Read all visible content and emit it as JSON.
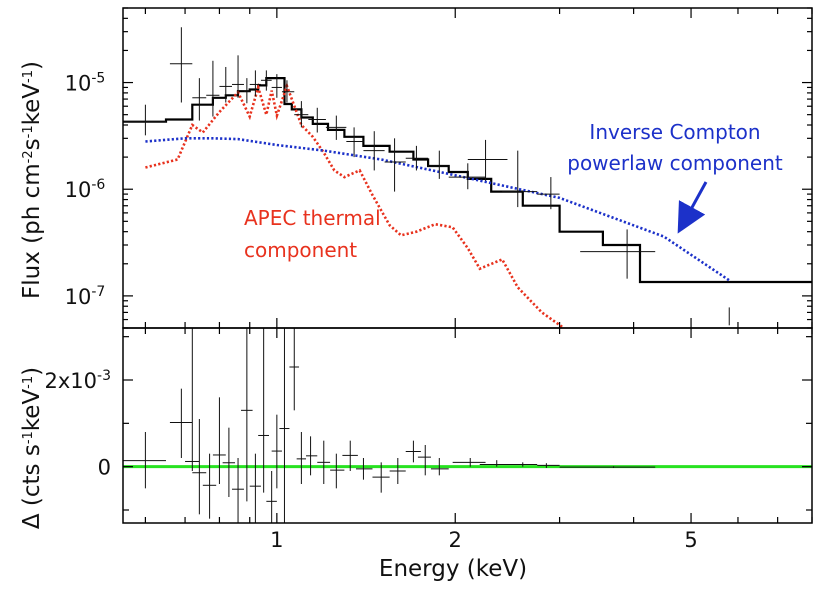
{
  "chart_data": [
    {
      "type": "line",
      "panel": "top",
      "xlabel": "",
      "ylabel": {
        "prefix": "Flux (ph cm",
        "exp1": "-2",
        "mid1": "s",
        "exp2": "-1",
        "mid2": "keV",
        "exp3": "-1",
        "suffix": ")"
      },
      "x_scale": "log",
      "y_scale": "log",
      "xlim": [
        0.55,
        8.0
      ],
      "ylim": [
        5e-08,
        5e-05
      ],
      "x_ticks": [
        1,
        2,
        5
      ],
      "y_ticks": [
        {
          "value": 1e-07,
          "base": "10",
          "exp": "-7"
        },
        {
          "value": 1e-06,
          "base": "10",
          "exp": "-6"
        },
        {
          "value": 1e-05,
          "base": "10",
          "exp": "-5"
        }
      ],
      "grid": false,
      "series": [
        {
          "name": "model",
          "style": "step",
          "color": "#000000",
          "x": [
            0.55,
            0.65,
            0.72,
            0.78,
            0.82,
            0.86,
            0.9,
            0.93,
            0.96,
            1.0,
            1.03,
            1.06,
            1.1,
            1.15,
            1.22,
            1.3,
            1.4,
            1.55,
            1.7,
            1.8,
            1.95,
            2.1,
            2.3,
            2.6,
            3.0,
            3.55,
            4.1,
            8.0
          ],
          "y": [
            4.3e-06,
            4.5e-06,
            6.2e-06,
            7.2e-06,
            7.6e-06,
            8.3e-06,
            8.6e-06,
            9.4e-06,
            1.1e-05,
            1.1e-05,
            6.3e-06,
            5.6e-06,
            4.7e-06,
            4.1e-06,
            3.6e-06,
            3.1e-06,
            2.55e-06,
            2.25e-06,
            1.9e-06,
            1.65e-06,
            1.45e-06,
            1.25e-06,
            9.5e-07,
            7e-07,
            4e-07,
            3e-07,
            1.35e-07,
            1.35e-07
          ]
        },
        {
          "name": "APEC thermal component",
          "style": "dotted",
          "color": "#e8321e",
          "x": [
            0.6,
            0.68,
            0.72,
            0.75,
            0.8,
            0.86,
            0.9,
            0.93,
            0.96,
            0.98,
            1.0,
            1.04,
            1.1,
            1.15,
            1.2,
            1.25,
            1.3,
            1.38,
            1.45,
            1.55,
            1.62,
            1.72,
            1.85,
            1.98,
            2.1,
            2.2,
            2.4,
            2.55,
            2.8,
            3.05
          ],
          "y": [
            1.6e-06,
            1.9e-06,
            4e-06,
            3.4e-06,
            5.3e-06,
            8.1e-06,
            4.8e-06,
            9e-06,
            5e-06,
            8.4e-06,
            4.9e-06,
            9.3e-06,
            4e-06,
            3.1e-06,
            2.2e-06,
            1.5e-06,
            1.3e-06,
            1.5e-06,
            8.8e-07,
            4.6e-07,
            3.7e-07,
            4e-07,
            4.7e-07,
            4.4e-07,
            2.8e-07,
            1.8e-07,
            2.2e-07,
            1.2e-07,
            7e-08,
            5e-08
          ]
        },
        {
          "name": "Inverse Compton powerlaw component",
          "style": "dotted",
          "color": "#1c31c9",
          "x": [
            0.6,
            0.7,
            0.78,
            0.86,
            1.0,
            1.2,
            1.5,
            2.0,
            3.0,
            4.5,
            5.8
          ],
          "y": [
            2.8e-06,
            3e-06,
            3e-06,
            2.95e-06,
            2.6e-06,
            2.3e-06,
            1.9e-06,
            1.35e-06,
            8.3e-07,
            3.6e-07,
            1.4e-07
          ]
        }
      ],
      "data_points": [
        {
          "x": 0.6,
          "y": 4.3e-06,
          "xlo": 0.55,
          "xhi": 0.65,
          "ylo": 3.2e-06,
          "yhi": 6.2e-06
        },
        {
          "x": 0.69,
          "y": 1.5e-05,
          "xlo": 0.66,
          "xhi": 0.72,
          "ylo": 6.5e-06,
          "yhi": 3.3e-05
        },
        {
          "x": 0.74,
          "y": 7.2e-06,
          "xlo": 0.72,
          "xhi": 0.76,
          "ylo": 4.4e-06,
          "yhi": 1.1e-05
        },
        {
          "x": 0.78,
          "y": 7.6e-06,
          "xlo": 0.76,
          "xhi": 0.8,
          "ylo": 4.8e-06,
          "yhi": 1.6e-05
        },
        {
          "x": 0.82,
          "y": 9.2e-06,
          "xlo": 0.8,
          "xhi": 0.84,
          "ylo": 6.5e-06,
          "yhi": 1.4e-05
        },
        {
          "x": 0.86,
          "y": 9.6e-06,
          "xlo": 0.84,
          "xhi": 0.88,
          "ylo": 7.2e-06,
          "yhi": 1.8e-05
        },
        {
          "x": 0.89,
          "y": 8.3e-06,
          "xlo": 0.88,
          "xhi": 0.9,
          "ylo": 6.4e-06,
          "yhi": 1.1e-05
        },
        {
          "x": 0.92,
          "y": 9.6e-06,
          "xlo": 0.9,
          "xhi": 0.94,
          "ylo": 7.4e-06,
          "yhi": 1.3e-05
        },
        {
          "x": 0.96,
          "y": 1.05e-05,
          "xlo": 0.94,
          "xhi": 0.98,
          "ylo": 8.4e-06,
          "yhi": 1.3e-05
        },
        {
          "x": 1.0,
          "y": 9e-06,
          "xlo": 0.98,
          "xhi": 1.02,
          "ylo": 7.2e-06,
          "yhi": 1.2e-05
        },
        {
          "x": 1.04,
          "y": 8.2e-06,
          "xlo": 1.02,
          "xhi": 1.07,
          "ylo": 6.5e-06,
          "yhi": 1.05e-05
        },
        {
          "x": 1.1,
          "y": 5e-06,
          "xlo": 1.07,
          "xhi": 1.13,
          "ylo": 3.8e-06,
          "yhi": 6.7e-06
        },
        {
          "x": 1.17,
          "y": 4.5e-06,
          "xlo": 1.13,
          "xhi": 1.21,
          "ylo": 3.4e-06,
          "yhi": 5.8e-06
        },
        {
          "x": 1.26,
          "y": 3.8e-06,
          "xlo": 1.21,
          "xhi": 1.31,
          "ylo": 2.9e-06,
          "yhi": 4.9e-06
        },
        {
          "x": 1.35,
          "y": 2.8e-06,
          "xlo": 1.31,
          "xhi": 1.4,
          "ylo": 2e-06,
          "yhi": 3.8e-06
        },
        {
          "x": 1.46,
          "y": 2.3e-06,
          "xlo": 1.4,
          "xhi": 1.52,
          "ylo": 1.5e-06,
          "yhi": 3.5e-06
        },
        {
          "x": 1.58,
          "y": 1.8e-06,
          "xlo": 1.52,
          "xhi": 1.65,
          "ylo": 9.5e-07,
          "yhi": 3e-06
        },
        {
          "x": 1.72,
          "y": 1.95e-06,
          "xlo": 1.65,
          "xhi": 1.8,
          "ylo": 1.5e-06,
          "yhi": 2.55e-06
        },
        {
          "x": 1.88,
          "y": 1.65e-06,
          "xlo": 1.8,
          "xhi": 1.95,
          "ylo": 1.25e-06,
          "yhi": 2.3e-06
        },
        {
          "x": 2.1,
          "y": 1.3e-06,
          "xlo": 1.95,
          "xhi": 2.25,
          "ylo": 1e-06,
          "yhi": 1.75e-06
        },
        {
          "x": 2.25,
          "y": 1.9e-06,
          "xlo": 2.1,
          "xhi": 2.45,
          "ylo": 1.2e-06,
          "yhi": 2.9e-06
        },
        {
          "x": 2.55,
          "y": 9.5e-07,
          "xlo": 2.4,
          "xhi": 2.75,
          "ylo": 6.8e-07,
          "yhi": 2.3e-06
        },
        {
          "x": 2.9,
          "y": 9e-07,
          "xlo": 2.75,
          "xhi": 3.0,
          "ylo": 6.5e-07,
          "yhi": 1.3e-06
        },
        {
          "x": 3.9,
          "y": 2.6e-07,
          "xlo": 3.25,
          "xhi": 4.35,
          "ylo": 1.45e-07,
          "yhi": 4.2e-07
        },
        {
          "x": 5.8,
          "y": 5.3e-08,
          "xlo": 5.8,
          "xhi": 5.8,
          "ylo": 5.3e-08,
          "yhi": 7.8e-08
        }
      ],
      "annotations": [
        {
          "lines": [
            "Inverse Compton",
            "powerlaw component"
          ],
          "color": "#1c31c9",
          "arrow_to_x": 4.8,
          "arrow_to_y": 4.3e-07
        },
        {
          "lines": [
            "APEC thermal",
            "component"
          ],
          "color": "#e8321e"
        }
      ]
    },
    {
      "type": "scatter",
      "panel": "bottom",
      "xlabel": "Energy (keV)",
      "ylabel": {
        "prefix": "Δ (cts s",
        "exp1": "-1",
        "mid1": "keV",
        "exp2": "-1",
        "suffix": ")"
      },
      "x_scale": "log",
      "xlim": [
        0.55,
        8.0
      ],
      "ylim": [
        -0.0013,
        0.0032
      ],
      "x_ticks": [
        {
          "value": 1,
          "label": "1"
        },
        {
          "value": 2,
          "label": "2"
        },
        {
          "value": 5,
          "label": "5"
        }
      ],
      "y_ticks": [
        {
          "value": 0,
          "label": "0",
          "exp": ""
        },
        {
          "value": 0.002,
          "label": "2x10",
          "exp": "-3"
        }
      ],
      "grid": false,
      "reference_line": {
        "y": 0,
        "color": "#27e220"
      },
      "residuals": [
        {
          "x": 0.6,
          "y": 0.00014,
          "xlo": 0.55,
          "xhi": 0.65,
          "ylo": -0.0005,
          "yhi": 0.0008
        },
        {
          "x": 0.69,
          "y": 0.00102,
          "xlo": 0.66,
          "xhi": 0.72,
          "ylo": 0.0002,
          "yhi": 0.0018
        },
        {
          "x": 0.72,
          "y": 0.00012,
          "xlo": 0.7,
          "xhi": 0.74,
          "ylo": -0.0001,
          "yhi": 0.0035
        },
        {
          "x": 0.74,
          "y": -0.00014,
          "xlo": 0.72,
          "xhi": 0.76,
          "ylo": -0.0011,
          "yhi": 0.0011
        },
        {
          "x": 0.77,
          "y": -0.00043,
          "xlo": 0.75,
          "xhi": 0.79,
          "ylo": -0.0012,
          "yhi": 0.0003
        },
        {
          "x": 0.8,
          "y": 0.00027,
          "xlo": 0.78,
          "xhi": 0.82,
          "ylo": -0.0004,
          "yhi": 0.0016
        },
        {
          "x": 0.83,
          "y": 9e-05,
          "xlo": 0.81,
          "xhi": 0.85,
          "ylo": -0.0007,
          "yhi": 0.0009
        },
        {
          "x": 0.86,
          "y": -0.00052,
          "xlo": 0.84,
          "xhi": 0.88,
          "ylo": -0.0013,
          "yhi": 0.0002
        },
        {
          "x": 0.89,
          "y": 0.0013,
          "xlo": 0.87,
          "xhi": 0.91,
          "ylo": -0.0008,
          "yhi": 0.0035
        },
        {
          "x": 0.92,
          "y": -0.00045,
          "xlo": 0.9,
          "xhi": 0.94,
          "ylo": -0.0013,
          "yhi": 0.0003
        },
        {
          "x": 0.95,
          "y": 0.00072,
          "xlo": 0.93,
          "xhi": 0.97,
          "ylo": -0.0006,
          "yhi": 0.0035
        },
        {
          "x": 0.98,
          "y": -0.0008,
          "xlo": 0.96,
          "xhi": 1.0,
          "ylo": -0.0013,
          "yhi": -0.0001
        },
        {
          "x": 1.0,
          "y": 0.00036,
          "xlo": 0.98,
          "xhi": 1.02,
          "ylo": -0.0005,
          "yhi": 0.0012
        },
        {
          "x": 1.03,
          "y": 0.00088,
          "xlo": 1.01,
          "xhi": 1.05,
          "ylo": -0.0013,
          "yhi": 0.0035
        },
        {
          "x": 1.07,
          "y": 0.0023,
          "xlo": 1.05,
          "xhi": 1.09,
          "ylo": 0.0013,
          "yhi": 0.0035
        },
        {
          "x": 1.1,
          "y": 0.00018,
          "xlo": 1.08,
          "xhi": 1.12,
          "ylo": -0.0004,
          "yhi": 0.0008
        },
        {
          "x": 1.14,
          "y": 0.00025,
          "xlo": 1.12,
          "xhi": 1.17,
          "ylo": -0.0002,
          "yhi": 0.0007
        },
        {
          "x": 1.2,
          "y": 0.0001,
          "xlo": 1.17,
          "xhi": 1.23,
          "ylo": -0.0004,
          "yhi": 0.0006
        },
        {
          "x": 1.26,
          "y": -8e-05,
          "xlo": 1.23,
          "xhi": 1.3,
          "ylo": -0.0005,
          "yhi": 0.0003
        },
        {
          "x": 1.33,
          "y": 0.00026,
          "xlo": 1.29,
          "xhi": 1.37,
          "ylo": -0.0001,
          "yhi": 0.0006
        },
        {
          "x": 1.4,
          "y": -5e-05,
          "xlo": 1.36,
          "xhi": 1.45,
          "ylo": -0.0003,
          "yhi": 0.0002
        },
        {
          "x": 1.5,
          "y": -0.00024,
          "xlo": 1.45,
          "xhi": 1.55,
          "ylo": -0.0006,
          "yhi": 0.0001
        },
        {
          "x": 1.6,
          "y": -0.0001,
          "xlo": 1.55,
          "xhi": 1.65,
          "ylo": -0.0004,
          "yhi": 0.0002
        },
        {
          "x": 1.7,
          "y": 0.00035,
          "xlo": 1.65,
          "xhi": 1.75,
          "ylo": 0.0001,
          "yhi": 0.0006
        },
        {
          "x": 1.78,
          "y": 0.00022,
          "xlo": 1.73,
          "xhi": 1.82,
          "ylo": -0.0002,
          "yhi": 0.0005
        },
        {
          "x": 1.88,
          "y": -5e-05,
          "xlo": 1.82,
          "xhi": 1.95,
          "ylo": -0.0002,
          "yhi": 0.0002
        },
        {
          "x": 2.12,
          "y": 0.0001,
          "xlo": 1.98,
          "xhi": 2.25,
          "ylo": 0.0,
          "yhi": 0.0002
        },
        {
          "x": 2.35,
          "y": 5e-05,
          "xlo": 2.2,
          "xhi": 2.5,
          "ylo": 0.0,
          "yhi": 0.00015
        },
        {
          "x": 2.6,
          "y": 5e-05,
          "xlo": 2.45,
          "xhi": 2.75,
          "ylo": 0.0,
          "yhi": 0.0001
        },
        {
          "x": 2.85,
          "y": 3e-05,
          "xlo": 2.75,
          "xhi": 3.0,
          "ylo": -3e-05,
          "yhi": 8e-05
        },
        {
          "x": 3.7,
          "y": -1e-05,
          "xlo": 3.0,
          "xhi": 4.35,
          "ylo": -3e-05,
          "yhi": 1e-05
        }
      ]
    }
  ]
}
